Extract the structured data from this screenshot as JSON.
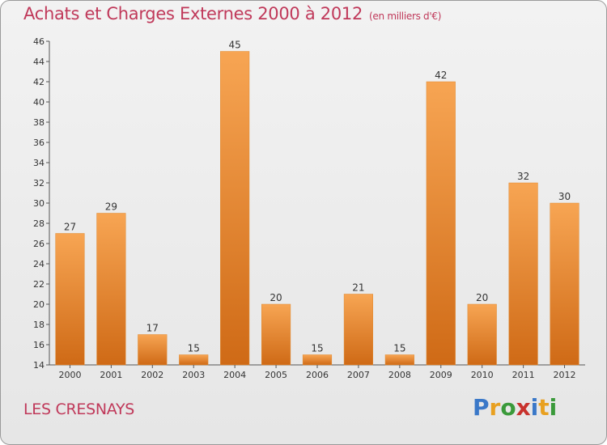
{
  "title": "Achats et Charges Externes 2000 à 2012",
  "unit_note": "(en milliers d'€)",
  "commune": "LES CRESNAYS",
  "logo": {
    "text": "Proxiti",
    "letters": [
      {
        "ch": "P",
        "color": "#3a78c8"
      },
      {
        "ch": "r",
        "color": "#e8a020"
      },
      {
        "ch": "o",
        "color": "#3a9a3a"
      },
      {
        "ch": "x",
        "color": "#c8322d"
      },
      {
        "ch": "i",
        "color": "#3a78c8"
      },
      {
        "ch": "t",
        "color": "#e8a020"
      },
      {
        "ch": "i",
        "color": "#3a9a3a"
      }
    ]
  },
  "colors": {
    "bar_light": "#f7a553",
    "bar_dark": "#cf6a16",
    "title": "#c0395a"
  },
  "chart_data": {
    "type": "bar",
    "title": "Achats et Charges Externes 2000 à 2012",
    "categories": [
      "2000",
      "2001",
      "2002",
      "2003",
      "2004",
      "2005",
      "2006",
      "2007",
      "2008",
      "2009",
      "2010",
      "2011",
      "2012"
    ],
    "values": [
      27,
      29,
      17,
      15,
      45,
      20,
      15,
      21,
      15,
      42,
      20,
      32,
      30
    ],
    "ylim": [
      14,
      46
    ],
    "yticks": [
      14,
      16,
      18,
      20,
      22,
      24,
      26,
      28,
      30,
      32,
      34,
      36,
      38,
      40,
      42,
      44,
      46
    ],
    "grid": false,
    "xlabel": "",
    "ylabel": ""
  }
}
